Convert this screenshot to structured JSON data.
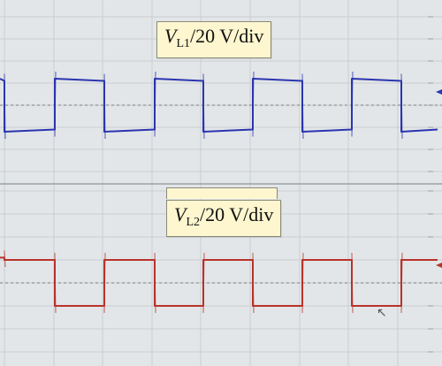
{
  "chart_data": [
    {
      "type": "line",
      "label_symbol": "V",
      "label_subscript": "L1",
      "label_rest": "/20 V/div",
      "color": "#2b35b0",
      "x": [
        0,
        5,
        5,
        62,
        62,
        118,
        118,
        175,
        175,
        230,
        230,
        286,
        286,
        342,
        342,
        398,
        398,
        454,
        454,
        495
      ],
      "y": [
        1.2,
        1.1,
        -1.2,
        -1.1,
        1.2,
        1.1,
        -1.2,
        -1.1,
        1.2,
        1.1,
        -1.2,
        -1.1,
        1.2,
        1.1,
        -1.2,
        -1.1,
        1.2,
        1.1,
        -1.2,
        -1.1
      ],
      "ylim": [
        -2,
        2
      ],
      "grid": true
    },
    {
      "type": "line",
      "label_symbol": "V",
      "label_subscript": "L2",
      "label_rest": "/20 V/div",
      "color": "#b8322b",
      "x": [
        0,
        5,
        5,
        62,
        62,
        118,
        118,
        175,
        175,
        230,
        230,
        286,
        286,
        342,
        342,
        398,
        398,
        454,
        454,
        495
      ],
      "y": [
        1.1,
        1.1,
        1.0,
        1.0,
        -1.0,
        -1.0,
        1.0,
        1.0,
        -1.0,
        -1.0,
        1.0,
        1.0,
        -1.0,
        -1.0,
        1.0,
        1.0,
        -1.0,
        -1.0,
        1.0,
        1.0
      ],
      "ylim": [
        -2,
        2
      ],
      "grid": true
    }
  ],
  "colors": {
    "screen_bg": "#e3e6e8",
    "grid": "#c9ced2",
    "ref_line": "#7d7d7d",
    "label_bg": "#fdf6cf"
  }
}
